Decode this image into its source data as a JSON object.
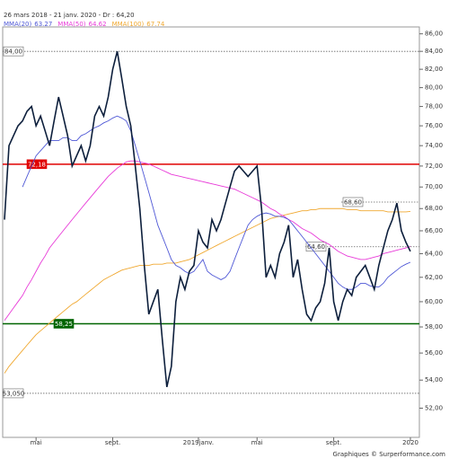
{
  "chart_data": {
    "type": "line",
    "title": "26 mars 2018 - 21 janv. 2020 - Dr : 64,20",
    "footer": "Graphiques © Surperformance.com",
    "log_scale": true,
    "categories": [
      null,
      null,
      null,
      null,
      null,
      null,
      null,
      "mai",
      null,
      null,
      null,
      null,
      null,
      null,
      null,
      null,
      null,
      null,
      null,
      null,
      null,
      null,
      null,
      null,
      "sept.",
      null,
      null,
      null,
      null,
      null,
      null,
      null,
      null,
      null,
      null,
      null,
      null,
      null,
      null,
      null,
      null,
      null,
      null,
      "2019janv.",
      null,
      null,
      null,
      null,
      null,
      null,
      null,
      null,
      null,
      null,
      null,
      null,
      "mai",
      null,
      null,
      null,
      null,
      null,
      null,
      null,
      null,
      null,
      null,
      null,
      null,
      null,
      null,
      null,
      null,
      "sept.",
      null,
      null,
      null,
      null,
      null,
      null,
      null,
      null,
      null,
      null,
      null,
      null,
      null,
      null,
      null,
      null,
      "2020"
    ],
    "series": [
      {
        "color": "#0d1f3c",
        "values": [
          67,
          74,
          75,
          76,
          76.5,
          77.5,
          78,
          76,
          77,
          75.5,
          74,
          76.5,
          79,
          77,
          75,
          72,
          73,
          74,
          72.5,
          74,
          77,
          78,
          77,
          79,
          82,
          84,
          81,
          78,
          76,
          72,
          68,
          63,
          59,
          60,
          61,
          57,
          53.5,
          55,
          60,
          62,
          61,
          62.5,
          63,
          66,
          65,
          64.5,
          67,
          66,
          67,
          68.5,
          70,
          71.5,
          72,
          71.5,
          71,
          71.5,
          72,
          68,
          62,
          63,
          62,
          64,
          65,
          66.5,
          62,
          63.5,
          61,
          59,
          58.5,
          59.5,
          60,
          61.5,
          64.5,
          60,
          58.5,
          60,
          61,
          60.5,
          62,
          62.5,
          63,
          62,
          61,
          63,
          64.5,
          66,
          67,
          68.5,
          66,
          65,
          64.2
        ]
      },
      {
        "name": "MMA(20)",
        "color": "#4f58d6",
        "values": [
          null,
          null,
          null,
          null,
          70,
          71,
          72,
          73,
          73.5,
          74,
          74.5,
          74.5,
          74.5,
          74.8,
          74.8,
          74.5,
          74.5,
          75,
          75.2,
          75.5,
          75.8,
          76,
          76.3,
          76.5,
          76.8,
          77,
          76.8,
          76.5,
          75.5,
          74,
          72.5,
          71,
          69.5,
          68,
          66.5,
          65.5,
          64.5,
          63.5,
          63,
          62.8,
          62.5,
          62.3,
          62.5,
          63,
          63.5,
          62.5,
          62.2,
          62,
          61.8,
          62,
          62.5,
          63.5,
          64.5,
          65.5,
          66.5,
          67,
          67.3,
          67.5,
          67.6,
          67.5,
          67.3,
          67.3,
          67.2,
          67,
          66.5,
          66,
          65.5,
          65,
          64.5,
          64,
          63.5,
          63,
          62.5,
          62,
          61.5,
          61.2,
          61,
          61,
          61.2,
          61.5,
          61.5,
          61.3,
          61.2,
          61.2,
          61.5,
          62,
          62.3,
          62.6,
          62.9,
          63.1,
          63.27
        ]
      },
      {
        "name": "MMA(50)",
        "color": "#e83ad8",
        "values": [
          58.5,
          59,
          59.5,
          60,
          60.5,
          61.2,
          61.8,
          62.5,
          63.2,
          63.8,
          64.5,
          65,
          65.5,
          66,
          66.5,
          67,
          67.5,
          68,
          68.5,
          69,
          69.5,
          70,
          70.5,
          71,
          71.4,
          71.8,
          72.1,
          72.4,
          72.5,
          72.5,
          72.4,
          72.3,
          72.2,
          72,
          71.8,
          71.6,
          71.4,
          71.2,
          71.1,
          71,
          70.9,
          70.8,
          70.7,
          70.6,
          70.5,
          70.4,
          70.3,
          70.2,
          70.1,
          70,
          69.9,
          69.8,
          69.6,
          69.4,
          69.2,
          69,
          68.8,
          68.6,
          68.3,
          68,
          67.8,
          67.5,
          67.3,
          67,
          66.8,
          66.5,
          66.2,
          66,
          65.8,
          65.5,
          65.2,
          65,
          64.8,
          64.5,
          64.2,
          64,
          63.8,
          63.7,
          63.6,
          63.5,
          63.5,
          63.6,
          63.7,
          63.8,
          64,
          64.1,
          64.2,
          64.3,
          64.4,
          64.5,
          64.62
        ]
      },
      {
        "name": "MMA(100)",
        "color": "#f0a830",
        "values": [
          54.5,
          55,
          55.4,
          55.8,
          56.2,
          56.6,
          57,
          57.4,
          57.7,
          58,
          58.3,
          58.6,
          58.9,
          59.2,
          59.5,
          59.8,
          60,
          60.3,
          60.6,
          60.9,
          61.2,
          61.5,
          61.8,
          62,
          62.2,
          62.4,
          62.6,
          62.7,
          62.8,
          62.9,
          63,
          63,
          63,
          63.1,
          63.1,
          63.1,
          63.2,
          63.2,
          63.2,
          63.3,
          63.4,
          63.5,
          63.7,
          63.9,
          64.1,
          64.3,
          64.5,
          64.7,
          64.9,
          65.1,
          65.3,
          65.5,
          65.7,
          65.9,
          66.1,
          66.3,
          66.5,
          66.7,
          66.9,
          67.1,
          67.2,
          67.3,
          67.4,
          67.5,
          67.6,
          67.7,
          67.8,
          67.8,
          67.9,
          67.9,
          68,
          68,
          68,
          68,
          68,
          68,
          67.9,
          67.9,
          67.9,
          67.8,
          67.8,
          67.8,
          67.8,
          67.8,
          67.8,
          67.7,
          67.7,
          67.7,
          67.7,
          67.7,
          67.74
        ]
      }
    ],
    "levels": [
      {
        "value": 84,
        "label": "84,00",
        "color": "#666666",
        "style": "dotted"
      },
      {
        "value": 72.18,
        "label": "72,18",
        "color": "#e00000",
        "style": "solid"
      },
      {
        "value": 58.25,
        "label": "58,25",
        "color": "#006400",
        "style": "solid"
      },
      {
        "value": 53.05,
        "label": "53,050",
        "color": "#666666",
        "style": "dotted"
      },
      {
        "value": 68.6,
        "label": "68,60",
        "color": "#666666",
        "style": "dotted"
      },
      {
        "value": 64.6,
        "label": "64,60",
        "color": "#666666",
        "style": "dotted"
      }
    ],
    "ylim": [
      50,
      86.8
    ],
    "yticks": [
      {
        "value": 52,
        "label": "52,00"
      },
      {
        "value": 54,
        "label": "54,00"
      },
      {
        "value": 56,
        "label": "56,00"
      },
      {
        "value": 58,
        "label": "58,00"
      },
      {
        "value": 60,
        "label": "60,00"
      },
      {
        "value": 62,
        "label": "62,00"
      },
      {
        "value": 64,
        "label": "64,00"
      },
      {
        "value": 66,
        "label": "66,00"
      },
      {
        "value": 68,
        "label": "68,00"
      },
      {
        "value": 70,
        "label": "70,00"
      },
      {
        "value": 72,
        "label": "72,00"
      },
      {
        "value": 74,
        "label": "74,00"
      },
      {
        "value": 76,
        "label": "76,00"
      },
      {
        "value": 78,
        "label": "78,00"
      },
      {
        "value": 80,
        "label": "80,00"
      },
      {
        "value": 82,
        "label": "82,00"
      },
      {
        "value": 84,
        "label": "84,00"
      },
      {
        "value": 86,
        "label": "86,00"
      }
    ]
  }
}
